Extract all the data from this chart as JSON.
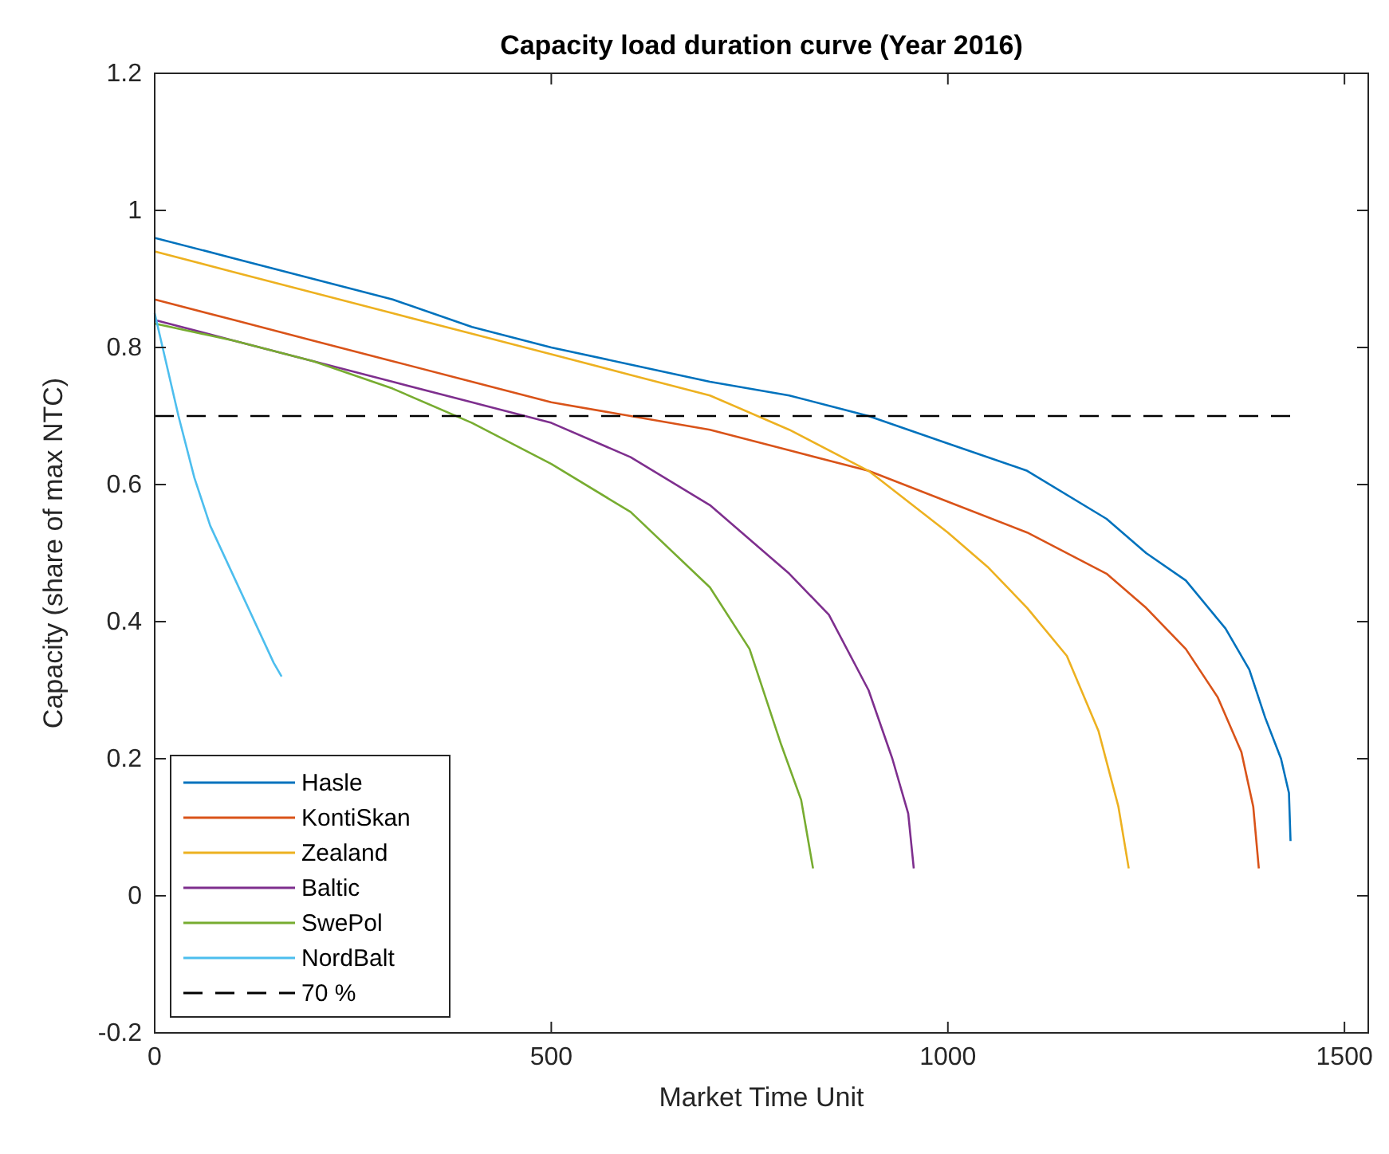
{
  "chart_data": {
    "type": "line",
    "title": "Capacity load duration curve (Year 2016)",
    "xlabel": "Market Time Unit",
    "ylabel": "Capacity (share of max NTC)",
    "xlim": [
      0,
      1530
    ],
    "xticks": [
      0,
      500,
      1000,
      1500
    ],
    "ylim": [
      -0.2,
      1.2
    ],
    "yticks": [
      -0.2,
      0,
      0.2,
      0.4,
      0.6,
      0.8,
      1,
      1.2
    ],
    "grid": false,
    "legend": "bottom left",
    "line_style": "solid",
    "series": [
      {
        "name": "Hasle",
        "color": "#0072bd",
        "x": [
          0,
          100,
          200,
          300,
          400,
          500,
          600,
          700,
          800,
          900,
          1000,
          1100,
          1200,
          1250,
          1300,
          1350,
          1380,
          1400,
          1420,
          1430,
          1432
        ],
        "values": [
          0.96,
          0.93,
          0.9,
          0.87,
          0.83,
          0.8,
          0.775,
          0.75,
          0.73,
          0.7,
          0.66,
          0.62,
          0.55,
          0.5,
          0.46,
          0.39,
          0.33,
          0.26,
          0.2,
          0.15,
          0.08
        ]
      },
      {
        "name": "KontiSkan",
        "color": "#d95319",
        "x": [
          0,
          100,
          200,
          300,
          400,
          500,
          600,
          700,
          800,
          900,
          1000,
          1100,
          1200,
          1250,
          1300,
          1340,
          1370,
          1385,
          1392
        ],
        "values": [
          0.87,
          0.84,
          0.81,
          0.78,
          0.75,
          0.72,
          0.7,
          0.68,
          0.65,
          0.62,
          0.575,
          0.53,
          0.47,
          0.42,
          0.36,
          0.29,
          0.21,
          0.13,
          0.04
        ]
      },
      {
        "name": "Zealand",
        "color": "#edb120",
        "x": [
          0,
          100,
          200,
          300,
          400,
          500,
          600,
          700,
          800,
          900,
          1000,
          1050,
          1100,
          1150,
          1190,
          1215,
          1228
        ],
        "values": [
          0.94,
          0.91,
          0.88,
          0.85,
          0.82,
          0.79,
          0.76,
          0.73,
          0.68,
          0.62,
          0.53,
          0.48,
          0.42,
          0.35,
          0.24,
          0.13,
          0.04
        ]
      },
      {
        "name": "Baltic",
        "color": "#7e2f8e",
        "x": [
          0,
          100,
          200,
          300,
          400,
          500,
          600,
          700,
          800,
          850,
          900,
          930,
          950,
          957
        ],
        "values": [
          0.84,
          0.81,
          0.78,
          0.75,
          0.72,
          0.69,
          0.64,
          0.57,
          0.47,
          0.41,
          0.3,
          0.2,
          0.12,
          0.04
        ]
      },
      {
        "name": "SwePol",
        "color": "#77ac30",
        "x": [
          0,
          100,
          200,
          300,
          400,
          500,
          600,
          700,
          750,
          790,
          815,
          830
        ],
        "values": [
          0.835,
          0.81,
          0.78,
          0.74,
          0.69,
          0.63,
          0.56,
          0.45,
          0.36,
          0.22,
          0.14,
          0.04
        ]
      },
      {
        "name": "NordBalt",
        "color": "#4dbeee",
        "x": [
          0,
          10,
          20,
          30,
          50,
          70,
          90,
          110,
          130,
          150,
          160
        ],
        "values": [
          0.85,
          0.8,
          0.75,
          0.7,
          0.61,
          0.54,
          0.49,
          0.44,
          0.39,
          0.34,
          0.32
        ]
      },
      {
        "name": "70 %",
        "color": "#000000",
        "line_style": "dashed",
        "x": [
          0,
          1433
        ],
        "values": [
          0.7,
          0.7
        ]
      }
    ]
  }
}
